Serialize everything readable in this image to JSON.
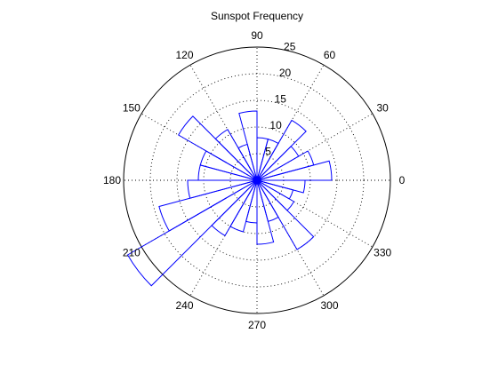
{
  "chart_data": {
    "type": "polar-rose",
    "title": "Sunspot Frequency",
    "angular_ticks": [
      {
        "deg": 0,
        "label": "0"
      },
      {
        "deg": 30,
        "label": "30"
      },
      {
        "deg": 60,
        "label": "60"
      },
      {
        "deg": 90,
        "label": "90"
      },
      {
        "deg": 120,
        "label": "120"
      },
      {
        "deg": 150,
        "label": "150"
      },
      {
        "deg": 180,
        "label": "180"
      },
      {
        "deg": 210,
        "label": "210"
      },
      {
        "deg": 240,
        "label": "240"
      },
      {
        "deg": 270,
        "label": "270"
      },
      {
        "deg": 300,
        "label": "300"
      },
      {
        "deg": 330,
        "label": "330"
      }
    ],
    "radial_ticks": [
      5,
      10,
      15,
      20,
      25
    ],
    "rmax": 25,
    "grid": true,
    "bin_width_deg": 15,
    "bin_centers_deg": [
      7.5,
      22.5,
      37.5,
      52.5,
      67.5,
      82.5,
      97.5,
      112.5,
      127.5,
      142.5,
      157.5,
      172.5,
      187.5,
      202.5,
      217.5,
      232.5,
      247.5,
      262.5,
      277.5,
      292.5,
      307.5,
      322.5,
      337.5,
      352.5
    ],
    "values": [
      14,
      11,
      9,
      13,
      8,
      8,
      13,
      7,
      11,
      17,
      11,
      11,
      13,
      19,
      28,
      12,
      10,
      8,
      12,
      8,
      15,
      8,
      7,
      9
    ]
  }
}
